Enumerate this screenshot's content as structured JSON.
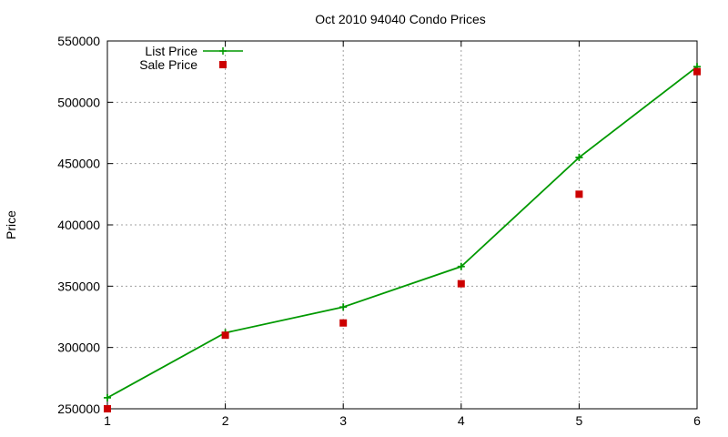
{
  "chart_data": {
    "type": "line",
    "title": "Oct 2010 94040 Condo Prices",
    "xlabel": "",
    "ylabel": "Price",
    "x": [
      1,
      2,
      3,
      4,
      5,
      6
    ],
    "xlim": [
      1,
      6
    ],
    "ylim": [
      250000,
      550000
    ],
    "xticks": [
      "1",
      "2",
      "3",
      "4",
      "5",
      "6"
    ],
    "yticks": [
      "250000",
      "300000",
      "350000",
      "400000",
      "450000",
      "500000",
      "550000"
    ],
    "grid": true,
    "legend_position": "top-left",
    "series": [
      {
        "name": "List Price",
        "style": "line-with-plus-markers",
        "color": "#009900",
        "values": [
          259000,
          312000,
          333000,
          366000,
          455000,
          529000
        ]
      },
      {
        "name": "Sale Price",
        "style": "square-markers",
        "color": "#cc0000",
        "values": [
          250000,
          310000,
          320000,
          352000,
          425000,
          525000
        ]
      }
    ]
  }
}
